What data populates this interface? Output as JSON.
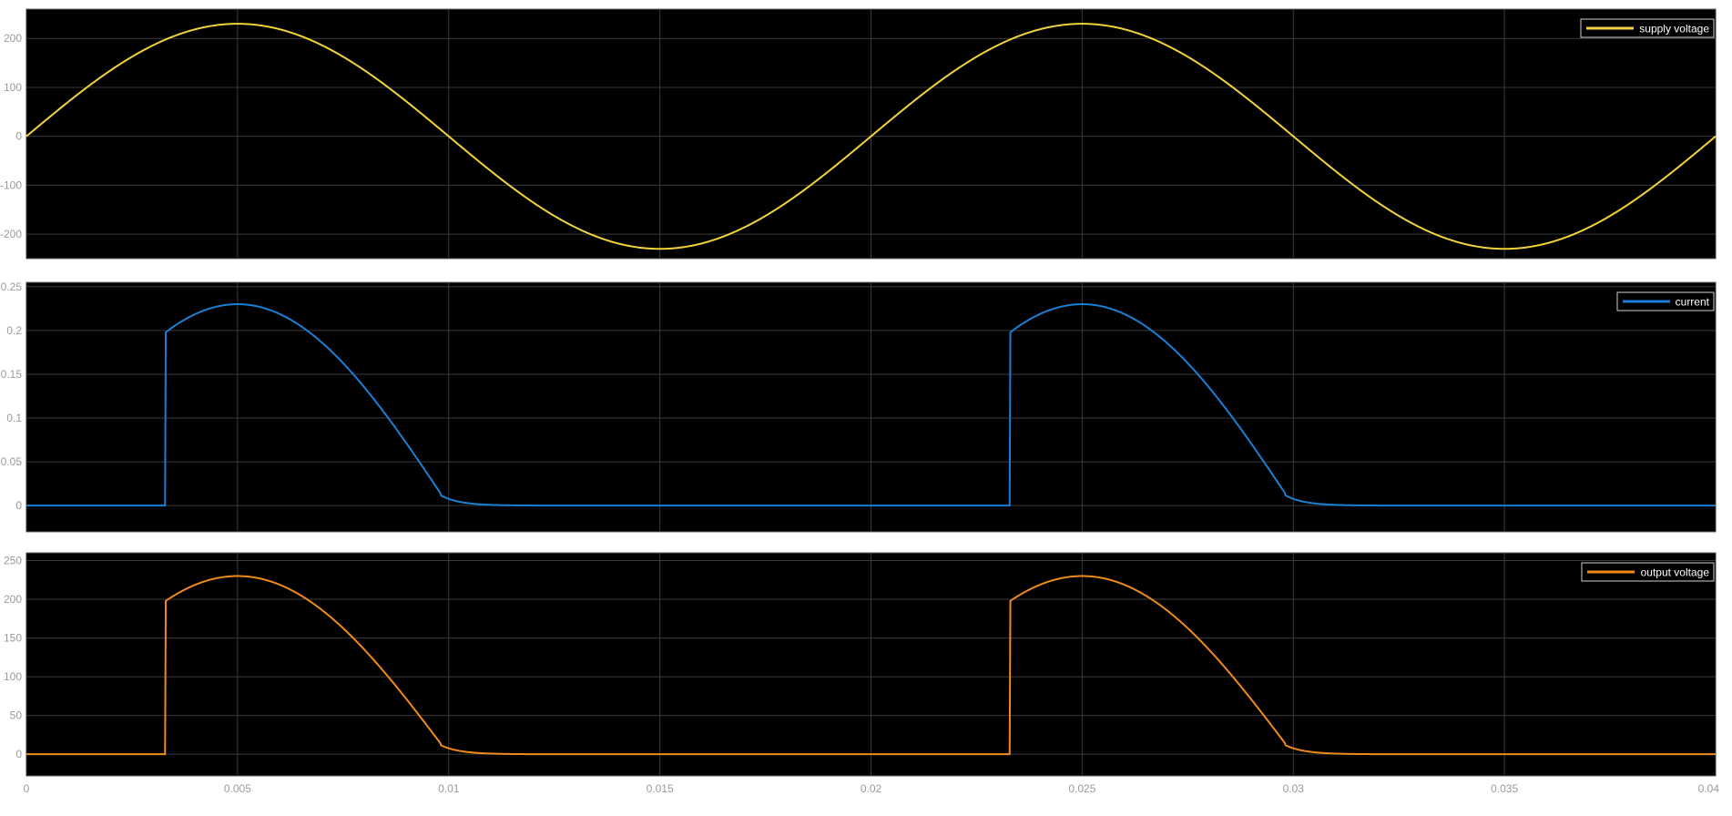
{
  "chart_data": [
    {
      "type": "line",
      "title": "",
      "xlabel": "",
      "ylabel": "",
      "xlim": [
        0,
        0.04
      ],
      "ylim": [
        -250,
        260
      ],
      "grid": true,
      "background": "#000000",
      "legend_placement": "top-right",
      "x_ticks": [
        0,
        0.005,
        0.01,
        0.015,
        0.02,
        0.025,
        0.03,
        0.035,
        0.04
      ],
      "x_tick_labels": [
        "0",
        "0.005",
        "0.01",
        "0.015",
        "0.02",
        "0.025",
        "0.03",
        "0.035",
        "0.04"
      ],
      "show_x_tick_labels": false,
      "y_ticks": [
        -200,
        -100,
        0,
        100,
        200
      ],
      "y_tick_labels": [
        "-200",
        "-100",
        "0",
        "100",
        "200"
      ],
      "series": [
        {
          "name": "supply voltage",
          "color": "#f2d33b",
          "waveform": "sine",
          "amplitude": 230,
          "frequency_hz": 50,
          "x_start": 0,
          "x_end": 0.04
        }
      ]
    },
    {
      "type": "line",
      "title": "",
      "xlabel": "",
      "ylabel": "",
      "xlim": [
        0,
        0.04
      ],
      "ylim": [
        -0.03,
        0.255
      ],
      "grid": true,
      "background": "#000000",
      "legend_placement": "top-right",
      "x_ticks": [
        0,
        0.005,
        0.01,
        0.015,
        0.02,
        0.025,
        0.03,
        0.035,
        0.04
      ],
      "x_tick_labels": [
        "0",
        "0.005",
        "0.01",
        "0.015",
        "0.02",
        "0.025",
        "0.03",
        "0.035",
        "0.04"
      ],
      "show_x_tick_labels": false,
      "y_ticks": [
        0,
        0.05,
        0.1,
        0.15,
        0.2,
        0.25
      ],
      "y_tick_labels": [
        "0",
        "0.05",
        "0.1",
        "0.15",
        "0.2",
        "0.25"
      ],
      "series": [
        {
          "name": "current",
          "color": "#1a7fd4",
          "waveform": "half-wave-controlled",
          "amplitude": 0.23,
          "frequency_hz": 50,
          "firing_time_in_period": 0.0033,
          "conduction_end_in_period": 0.0098,
          "tail_value": 0.012,
          "x_start": 0,
          "x_end": 0.04
        }
      ]
    },
    {
      "type": "line",
      "title": "",
      "xlabel": "",
      "ylabel": "",
      "xlim": [
        0,
        0.04
      ],
      "ylim": [
        -28,
        260
      ],
      "grid": true,
      "background": "#000000",
      "legend_placement": "top-right",
      "x_ticks": [
        0,
        0.005,
        0.01,
        0.015,
        0.02,
        0.025,
        0.03,
        0.035,
        0.04
      ],
      "x_tick_labels": [
        "0",
        "0.005",
        "0.01",
        "0.015",
        "0.02",
        "0.025",
        "0.03",
        "0.035",
        "0.04"
      ],
      "show_x_tick_labels": true,
      "y_ticks": [
        0,
        50,
        100,
        150,
        200,
        250
      ],
      "y_tick_labels": [
        "0",
        "50",
        "100",
        "150",
        "200",
        "250"
      ],
      "series": [
        {
          "name": "output voltage",
          "color": "#ef8a1b",
          "waveform": "half-wave-controlled",
          "amplitude": 230,
          "frequency_hz": 50,
          "firing_time_in_period": 0.0033,
          "conduction_end_in_period": 0.0098,
          "tail_value": 12,
          "x_start": 0,
          "x_end": 0.04
        }
      ]
    }
  ]
}
